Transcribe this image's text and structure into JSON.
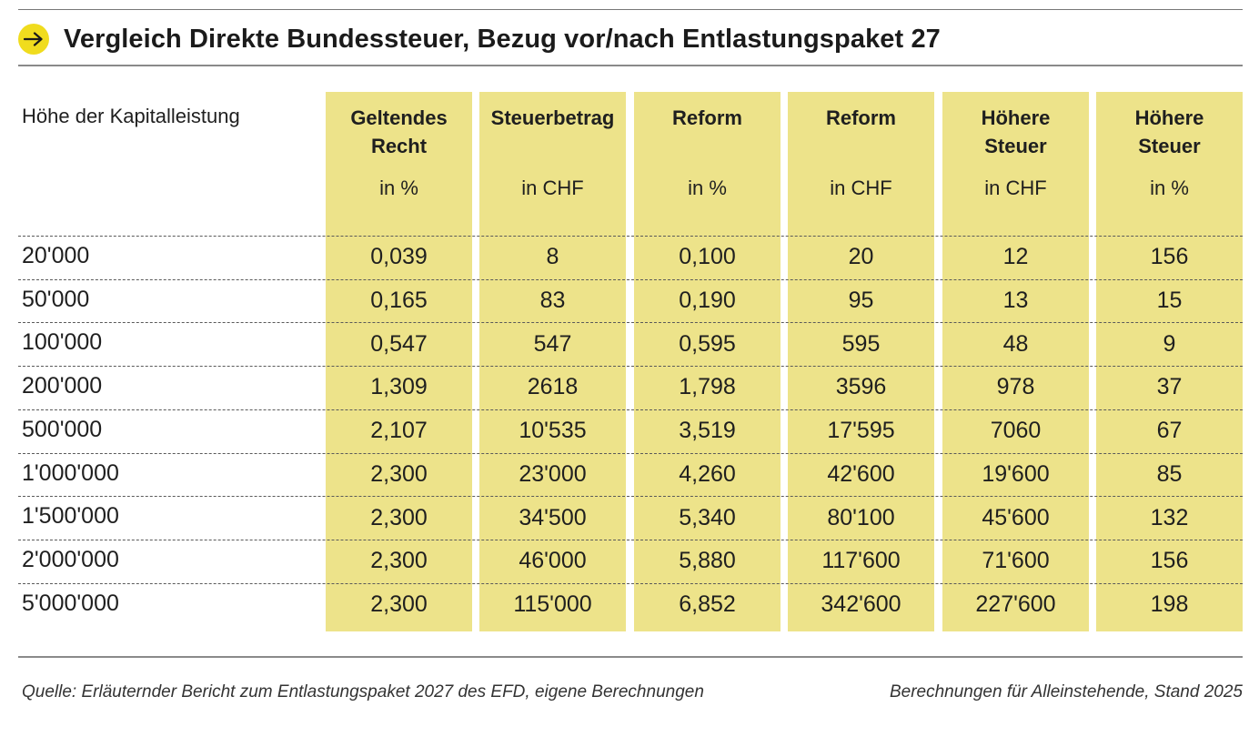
{
  "title": "Vergleich Direkte Bundessteuer, Bezug vor/nach Entlastungspaket 27",
  "row_header": "Höhe der Kapitalleistung",
  "footer": {
    "source": "Quelle: Erläuternder Bericht zum Entlastungspaket 2027 des EFD, eigene Berechnungen",
    "note": "Berechnungen für Alleinstehende, Stand 2025"
  },
  "colors": {
    "accent": "#f0dc1e",
    "column_fill": "#ede38a",
    "text": "#1f1f1f",
    "rule": "#8a8a8a"
  },
  "icons": {
    "title_icon": "arrow-right-icon"
  },
  "chart_data": {
    "type": "table",
    "columns": [
      {
        "label": "Geltendes\nRecht",
        "unit": "in %"
      },
      {
        "label": "Steuerbetrag",
        "unit": "in CHF"
      },
      {
        "label": "Reform",
        "unit": "in %"
      },
      {
        "label": "Reform",
        "unit": "in CHF"
      },
      {
        "label": "Höhere\nSteuer",
        "unit": "in CHF"
      },
      {
        "label": "Höhere\nSteuer",
        "unit": "in %"
      }
    ],
    "rows": [
      {
        "label": "20'000",
        "values": [
          "0,039",
          "8",
          "0,100",
          "20",
          "12",
          "156"
        ]
      },
      {
        "label": "50'000",
        "values": [
          "0,165",
          "83",
          "0,190",
          "95",
          "13",
          "15"
        ]
      },
      {
        "label": "100'000",
        "values": [
          "0,547",
          "547",
          "0,595",
          "595",
          "48",
          "9"
        ]
      },
      {
        "label": "200'000",
        "values": [
          "1,309",
          "2618",
          "1,798",
          "3596",
          "978",
          "37"
        ]
      },
      {
        "label": "500'000",
        "values": [
          "2,107",
          "10'535",
          "3,519",
          "17'595",
          "7060",
          "67"
        ]
      },
      {
        "label": "1'000'000",
        "values": [
          "2,300",
          "23'000",
          "4,260",
          "42'600",
          "19'600",
          "85"
        ]
      },
      {
        "label": "1'500'000",
        "values": [
          "2,300",
          "34'500",
          "5,340",
          "80'100",
          "45'600",
          "132"
        ]
      },
      {
        "label": "2'000'000",
        "values": [
          "2,300",
          "46'000",
          "5,880",
          "117'600",
          "71'600",
          "156"
        ]
      },
      {
        "label": "5'000'000",
        "values": [
          "2,300",
          "115'000",
          "6,852",
          "342'600",
          "227'600",
          "198"
        ]
      }
    ]
  }
}
